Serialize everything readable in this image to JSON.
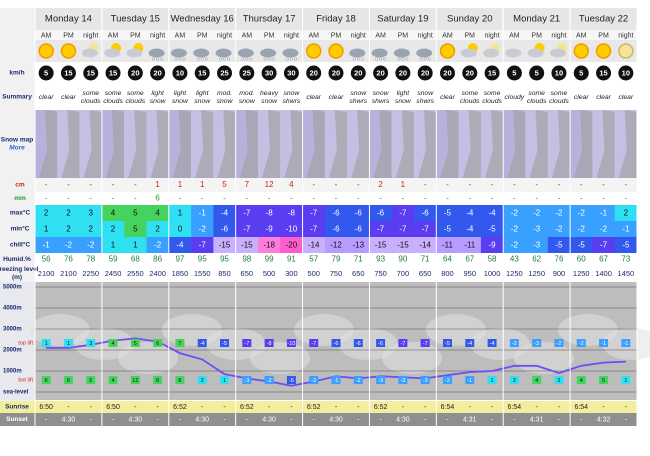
{
  "days": [
    "Monday 14",
    "Tuesday 15",
    "Wednesday 16",
    "Thursday 17",
    "Friday 18",
    "Saturday 19",
    "Sunday 20",
    "Monday 21",
    "Tuesday 22"
  ],
  "periods": [
    "AM",
    "PM",
    "night"
  ],
  "labels": {
    "wind": "km/h",
    "summary": "Summary",
    "snow_map": "Snow map",
    "snow_map_link": "More",
    "snow": "cm",
    "rain": "mm",
    "max": "max°C",
    "min": "min°C",
    "chill": "chill°C",
    "humidity": "Humid.%",
    "freezing": "Freezing level (m)",
    "sunrise": "Sunrise",
    "sunset": "Sunset"
  },
  "rows": {
    "wind": [
      5,
      15,
      15,
      15,
      20,
      20,
      10,
      15,
      25,
      25,
      30,
      30,
      20,
      20,
      20,
      20,
      20,
      20,
      20,
      20,
      15,
      5,
      5,
      10,
      5,
      15,
      10
    ],
    "summary": [
      "clear",
      "clear",
      "some clouds",
      "some clouds",
      "some clouds",
      "light snow",
      "light snow",
      "light snow",
      "mod. snow",
      "mod. snow",
      "heavy snow",
      "snow shwrs",
      "clear",
      "clear",
      "snow shwrs",
      "snow shwrs",
      "light snow",
      "snow shwrs",
      "clear",
      "some clouds",
      "some clouds",
      "cloudy",
      "some clouds",
      "some clouds",
      "clear",
      "clear",
      "clear"
    ],
    "snow": [
      "-",
      "-",
      "-",
      "-",
      "-",
      1,
      1,
      1,
      5,
      7,
      12,
      4,
      "-",
      "-",
      "-",
      2,
      1,
      "-",
      "-",
      "-",
      "-",
      "-",
      "-",
      "-",
      "-",
      "-",
      "-"
    ],
    "rain": [
      "-",
      "-",
      "-",
      "-",
      "-",
      6,
      "-",
      "-",
      "-",
      "-",
      "-",
      "-",
      "-",
      "-",
      "-",
      "-",
      "-",
      "-",
      "-",
      "-",
      "-",
      "-",
      "-",
      "-",
      "-",
      "-",
      "-"
    ],
    "max": [
      2,
      2,
      3,
      4,
      5,
      4,
      1,
      -1,
      -4,
      -7,
      -8,
      -8,
      -7,
      -6,
      -6,
      -6,
      -7,
      -6,
      -5,
      -4,
      -4,
      -2,
      -2,
      -2,
      -2,
      -1,
      2
    ],
    "min": [
      1,
      2,
      2,
      2,
      5,
      2,
      0,
      -2,
      -6,
      -7,
      -9,
      -10,
      -7,
      -6,
      -6,
      -7,
      -7,
      -7,
      -5,
      -4,
      -5,
      -2,
      -3,
      -2,
      -2,
      -2,
      -1
    ],
    "chill": [
      -1,
      -2,
      -2,
      1,
      1,
      -2,
      -4,
      -7,
      -15,
      -15,
      -18,
      -20,
      -14,
      -12,
      -13,
      -15,
      -15,
      -14,
      -11,
      -11,
      -9,
      -2,
      -3,
      -5,
      -5,
      -7,
      -5
    ],
    "humidity": [
      56,
      76,
      78,
      59,
      68,
      86,
      97,
      95,
      95,
      98,
      99,
      91,
      57,
      79,
      71,
      93,
      90,
      71,
      64,
      67,
      58,
      43,
      62,
      76,
      60,
      67,
      73
    ],
    "freezing": [
      2100,
      2100,
      2250,
      2450,
      2550,
      2400,
      1850,
      1550,
      850,
      650,
      500,
      300,
      500,
      750,
      650,
      750,
      700,
      650,
      800,
      950,
      1000,
      1250,
      1250,
      900,
      1250,
      1400,
      1450
    ],
    "sunrise": [
      "6:50",
      "-",
      "-",
      "6:50",
      "-",
      "-",
      "6:52",
      "-",
      "-",
      "6:52",
      "-",
      "-",
      "6:52",
      "-",
      "-",
      "6:52",
      "-",
      "-",
      "6:54",
      "-",
      "-",
      "6:54",
      "-",
      "-",
      "6:54",
      "-",
      "-"
    ],
    "sunset": [
      "-",
      "4:30",
      "-",
      "-",
      "4:30",
      "-",
      "-",
      "4:30",
      "-",
      "-",
      "4:30",
      "-",
      "-",
      "4:30",
      "-",
      "-",
      "4:30",
      "-",
      "-",
      "4:31",
      "-",
      "-",
      "4:31",
      "-",
      "-",
      "4:32",
      "-"
    ]
  },
  "freezing_chart": {
    "ylim": [
      0,
      5000
    ],
    "yticks": [
      {
        "value": 5000,
        "label": "5000m"
      },
      {
        "value": 4000,
        "label": "4000m"
      },
      {
        "value": 3000,
        "label": "3000m"
      },
      {
        "value": 2000,
        "label": "2000m"
      },
      {
        "value": 1000,
        "label": "1000m"
      },
      {
        "value": 0,
        "label": "sea-level"
      }
    ],
    "top_lift_label": "top lift",
    "bot_lift_label": "bot lift",
    "line_color": "#6f4cf5",
    "top_lift_temps": [
      1,
      1,
      3,
      4,
      5,
      6,
      7,
      -4,
      -5,
      -7,
      -8,
      -10,
      -7,
      -6,
      -6,
      -6,
      -7,
      -7,
      -5,
      -4,
      -4,
      -2,
      -3,
      -2,
      -2,
      -1,
      -1
    ],
    "bot_lift_temps": [
      6,
      6,
      5,
      4,
      12,
      6,
      6,
      2,
      1,
      -3,
      -2,
      -5,
      -2,
      -1,
      -2,
      -3,
      -3,
      -3,
      -2,
      -1,
      1,
      2,
      4,
      3,
      4,
      5,
      1
    ]
  }
}
